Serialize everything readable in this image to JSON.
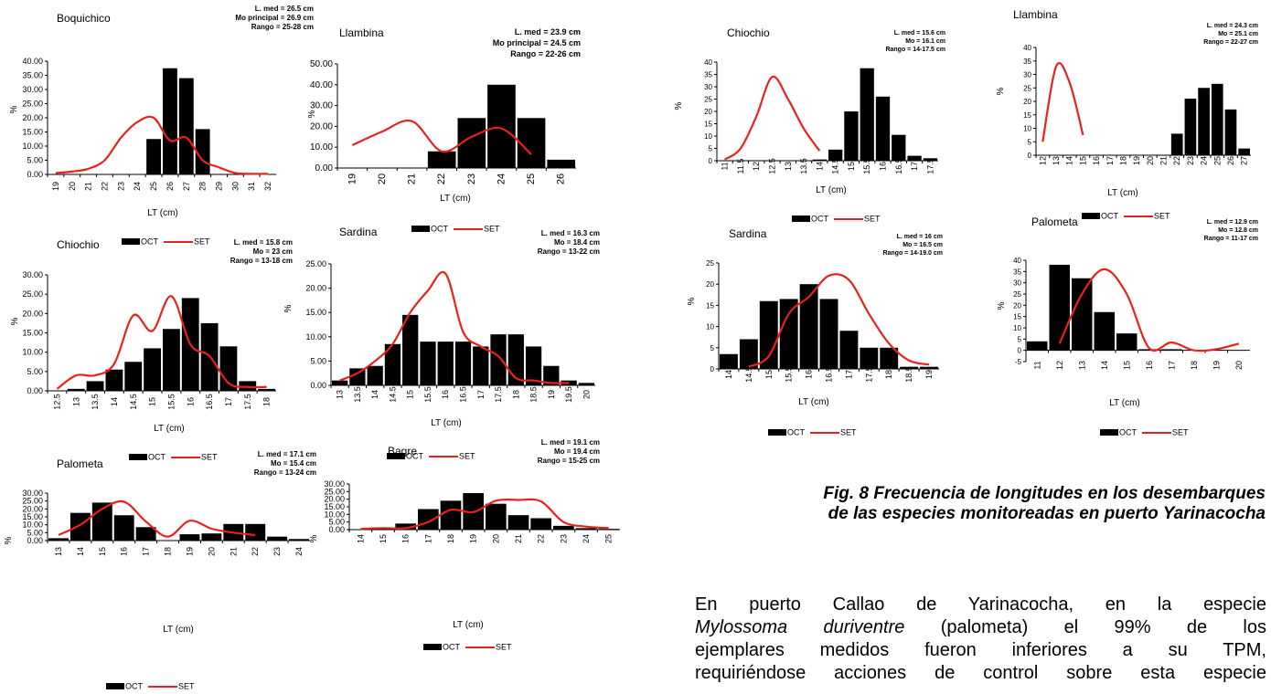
{
  "colors": {
    "oct": "#000000",
    "set": "#e8211d"
  },
  "legend": {
    "oct": "OCT",
    "set": "SET"
  },
  "caption": {
    "line1": "Fig. 8 Frecuencia de longitudes en los desembarques",
    "line2": "de las especies monitoreadas en puerto Yarinacocha"
  },
  "paragraph": {
    "l1": "En puerto Callao de Yarinacocha, en la especie",
    "l2_italic": "Mylossoma duriventre",
    "l2_rest": " (palometa) el 99% de los",
    "l3": "ejemplares medidos fueron inferiores a su TPM,",
    "l4": "requiriéndose acciones de control sobre esta especie"
  },
  "chart_data": [
    {
      "type": "bar",
      "species": "Boquichico",
      "stats": [
        "L. med = 26.5 cm",
        "Mo principal = 26.9 cm",
        "Rango = 25-28 cm"
      ],
      "xlabel": "LT (cm)",
      "ylabel": "%",
      "categories": [
        "19",
        "20",
        "21",
        "22",
        "23",
        "24",
        "25",
        "26",
        "27",
        "28",
        "29",
        "30",
        "31",
        "32"
      ],
      "ylim": [
        0,
        40
      ],
      "yticks": [
        "0.00",
        "5.00",
        "10.00",
        "15.00",
        "20.00",
        "25.00",
        "30.00",
        "35.00",
        "40.00"
      ],
      "series": [
        {
          "name": "OCT",
          "kind": "bar",
          "values": [
            0,
            0,
            0,
            0,
            0,
            0,
            12.5,
            37.5,
            34,
            16,
            0,
            0,
            0,
            0
          ]
        },
        {
          "name": "SET",
          "kind": "line",
          "values": [
            0.5,
            1,
            2,
            5,
            13,
            18.5,
            20,
            12,
            13,
            5,
            2.5,
            0.5,
            0.2,
            0.2
          ]
        }
      ]
    },
    {
      "type": "bar",
      "species": "Llambina",
      "stats": [
        "L. med = 23.9 cm",
        "Mo principal = 24.5 cm",
        "Rango = 22-26 cm"
      ],
      "xlabel": "LT (cm)",
      "ylabel": "%",
      "categories": [
        "19",
        "20",
        "21",
        "22",
        "23",
        "24",
        "25",
        "26"
      ],
      "ylim": [
        0,
        50
      ],
      "yticks": [
        "0.00",
        "10.00",
        "20.00",
        "30.00",
        "40.00",
        "50.00"
      ],
      "series": [
        {
          "name": "OCT",
          "kind": "bar",
          "values": [
            0,
            0,
            0,
            8,
            24,
            40,
            24,
            4
          ]
        },
        {
          "name": "SET",
          "kind": "line",
          "values": [
            11,
            17.5,
            22.5,
            8,
            15,
            19,
            6.5,
            null
          ]
        }
      ]
    },
    {
      "type": "bar",
      "species": "Chiochio",
      "stats": [
        "L. med = 15.8 cm",
        "Mo = 23 cm",
        "Rango = 13-18 cm"
      ],
      "xlabel": "LT (cm)",
      "ylabel": "%",
      "categories": [
        "12.5",
        "13",
        "13.5",
        "14",
        "14.5",
        "15",
        "15.5",
        "16",
        "16.5",
        "17",
        "17.5",
        "18"
      ],
      "ylim": [
        0,
        30
      ],
      "yticks": [
        "0.00",
        "5.00",
        "10.00",
        "15.00",
        "20.00",
        "25.00",
        "30.00"
      ],
      "series": [
        {
          "name": "OCT",
          "kind": "bar",
          "values": [
            0,
            0.5,
            2.5,
            5.5,
            7.5,
            11,
            16,
            24,
            17.5,
            11.5,
            2.5,
            0.5
          ]
        },
        {
          "name": "SET",
          "kind": "line",
          "values": [
            0.5,
            4,
            4,
            7,
            19.5,
            15.5,
            24.5,
            12,
            9,
            2,
            1,
            1
          ]
        }
      ]
    },
    {
      "type": "bar",
      "species": "Sardina",
      "stats": [
        "L. med = 16.3 cm",
        "Mo = 18.4 cm",
        "Rango = 13-22 cm"
      ],
      "xlabel": "LT (cm)",
      "ylabel": "%",
      "categories": [
        "13",
        "13.5",
        "14",
        "14.5",
        "15",
        "15.5",
        "16",
        "16.5",
        "17",
        "17.5",
        "18",
        "18.5",
        "19",
        "19.5",
        "20"
      ],
      "ylim": [
        0,
        25
      ],
      "yticks": [
        "0.00",
        "5.00",
        "10.00",
        "15.00",
        "20.00",
        "25.00"
      ],
      "series": [
        {
          "name": "OCT",
          "kind": "bar",
          "values": [
            1,
            3.5,
            4,
            8.5,
            14.5,
            9,
            9,
            9,
            8,
            10.5,
            10.5,
            8,
            4,
            1,
            0.5
          ]
        },
        {
          "name": "SET",
          "kind": "line",
          "values": [
            1,
            2.5,
            5,
            8.5,
            15,
            19.5,
            23,
            11,
            8,
            6,
            1.5,
            1,
            0.5,
            0.5,
            null
          ]
        }
      ]
    },
    {
      "type": "bar",
      "species": "Palometa",
      "stats": [
        "L. med = 17.1 cm",
        "Mo = 15.4 cm",
        "Rango = 13-24 cm"
      ],
      "xlabel": "LT (cm)",
      "ylabel": "%",
      "categories": [
        "13",
        "14",
        "15",
        "16",
        "17",
        "18",
        "19",
        "20",
        "21",
        "22",
        "23",
        "24"
      ],
      "ylim": [
        0,
        30
      ],
      "yticks": [
        "0.00",
        "5.00",
        "10.00",
        "15.00",
        "20.00",
        "25.00",
        "30.00"
      ],
      "series": [
        {
          "name": "OCT",
          "kind": "bar",
          "values": [
            1.5,
            17.5,
            24,
            16,
            8.5,
            0,
            4,
            4.5,
            10.5,
            10.5,
            2.5,
            1
          ]
        },
        {
          "name": "SET",
          "kind": "line",
          "values": [
            3.5,
            10,
            20,
            24.5,
            12,
            2.5,
            12.5,
            7.5,
            5,
            3.5,
            null,
            null
          ]
        }
      ]
    },
    {
      "type": "bar",
      "species": "Bagre",
      "stats": [
        "L. med = 19.1 cm",
        "Mo = 19.4 cm",
        "Rango = 15-25 cm"
      ],
      "xlabel": "LT (cm)",
      "ylabel": "%",
      "categories": [
        "14",
        "15",
        "16",
        "17",
        "18",
        "19",
        "20",
        "21",
        "22",
        "23",
        "24",
        "25"
      ],
      "ylim": [
        0,
        30
      ],
      "yticks": [
        "0.00",
        "5.00",
        "10.00",
        "15.00",
        "20.00",
        "25.00",
        "30.00"
      ],
      "series": [
        {
          "name": "OCT",
          "kind": "bar",
          "values": [
            0,
            1.5,
            4,
            13.5,
            19,
            24,
            17,
            9.5,
            7.5,
            2.5,
            1,
            0.5
          ]
        },
        {
          "name": "SET",
          "kind": "line",
          "values": [
            0.5,
            1,
            1,
            5,
            13,
            11.5,
            19,
            19.5,
            18.5,
            5,
            2,
            1
          ]
        }
      ]
    },
    {
      "type": "bar",
      "species": "Chiochio",
      "stats": [
        "L. med = 15.6 cm",
        "Mo = 16.1 cm",
        "Rango = 14-17.5 cm"
      ],
      "xlabel": "LT (cm)",
      "ylabel": "%",
      "categories": [
        "11",
        "11.5",
        "12",
        "12.5",
        "13",
        "13.5",
        "14",
        "14.5",
        "15",
        "15.5",
        "16",
        "16.5",
        "17",
        "17.5"
      ],
      "ylim": [
        0,
        40
      ],
      "yticks": [
        "0",
        "5",
        "10",
        "15",
        "20",
        "25",
        "30",
        "35",
        "40"
      ],
      "series": [
        {
          "name": "OCT",
          "kind": "bar",
          "values": [
            0,
            0,
            0,
            0,
            0,
            0,
            0.5,
            4.5,
            20,
            37.5,
            26,
            10.5,
            2,
            1
          ]
        },
        {
          "name": "SET",
          "kind": "line",
          "values": [
            0.5,
            5,
            18,
            34,
            25,
            13,
            4,
            null,
            null,
            null,
            null,
            null,
            null,
            null
          ]
        }
      ]
    },
    {
      "type": "bar",
      "species": "Llambina",
      "stats": [
        "L. med = 24.3 cm",
        "Mo  = 25.1 cm",
        "Rango = 22-27 cm"
      ],
      "xlabel": "LT (cm)",
      "ylabel": "%",
      "categories": [
        "12",
        "13",
        "14",
        "15",
        "16",
        "17",
        "18",
        "19",
        "20",
        "21",
        "22",
        "23",
        "24",
        "25",
        "26",
        "27"
      ],
      "ylim": [
        0,
        40
      ],
      "yticks": [
        "0",
        "5",
        "10",
        "15",
        "20",
        "25",
        "30",
        "35",
        "40"
      ],
      "series": [
        {
          "name": "OCT",
          "kind": "bar",
          "values": [
            0,
            0,
            0,
            0,
            0,
            0,
            0,
            0,
            0,
            0,
            8,
            21,
            25,
            26.5,
            17,
            2.5
          ]
        },
        {
          "name": "SET",
          "kind": "line",
          "values": [
            5,
            33,
            27,
            7.5,
            null,
            null,
            null,
            null,
            null,
            null,
            null,
            null,
            null,
            null,
            null,
            null
          ]
        }
      ]
    },
    {
      "type": "bar",
      "species": "Sardina",
      "stats": [
        "L. med = 16 cm",
        "Mo = 16.5 cm",
        "Rango = 14-19.0 cm"
      ],
      "xlabel": "LT (cm)",
      "ylabel": "%",
      "categories": [
        "14",
        "14.5",
        "15",
        "15.5",
        "16",
        "16.5",
        "17",
        "17.5",
        "18",
        "18.5",
        "19"
      ],
      "ylim": [
        0,
        25
      ],
      "yticks": [
        "0",
        "5",
        "10",
        "15",
        "20",
        "25"
      ],
      "series": [
        {
          "name": "OCT",
          "kind": "bar",
          "values": [
            3.5,
            7,
            16,
            16.5,
            20,
            16.5,
            9,
            5,
            5,
            0.5,
            0.5
          ]
        },
        {
          "name": "SET",
          "kind": "line",
          "values": [
            null,
            0.5,
            3,
            13,
            17,
            22,
            21,
            13,
            6,
            2,
            1
          ]
        }
      ]
    },
    {
      "type": "bar",
      "species": "Palometa",
      "stats": [
        "L. med = 12.9 cm",
        "Mo = 12.8 cm",
        "Rango = 11-17 cm"
      ],
      "xlabel": "LT (cm)",
      "ylabel": "%",
      "categories": [
        "11",
        "12",
        "13",
        "14",
        "15",
        "16",
        "17",
        "18",
        "19",
        "20"
      ],
      "ylim": [
        -5,
        40
      ],
      "yticks": [
        "-5",
        "0",
        "5",
        "10",
        "15",
        "20",
        "25",
        "30",
        "35",
        "40"
      ],
      "series": [
        {
          "name": "OCT",
          "kind": "bar",
          "values": [
            4,
            38,
            32,
            17,
            7.5,
            0.5,
            0.5,
            0,
            0,
            0
          ]
        },
        {
          "name": "SET",
          "kind": "line",
          "values": [
            null,
            3,
            25,
            36,
            25,
            1,
            3.5,
            0,
            0.5,
            3
          ]
        }
      ]
    }
  ]
}
